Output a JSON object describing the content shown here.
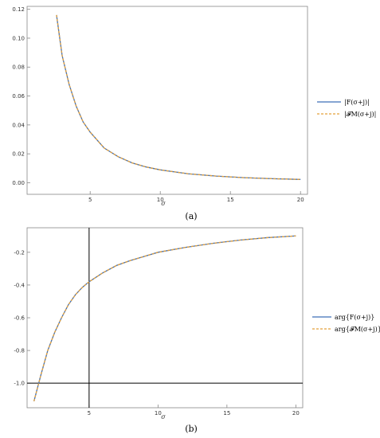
{
  "chart_data": [
    {
      "type": "line",
      "caption": "(a)",
      "xlabel": "σ",
      "xlim": [
        0.5,
        20.5
      ],
      "ylim": [
        -0.008,
        0.122
      ],
      "xticks": [
        5,
        10,
        15,
        20
      ],
      "yticks": [
        0.0,
        0.02,
        0.04,
        0.06,
        0.08,
        0.1,
        0.12
      ],
      "ytick_labels": [
        "0.00",
        "0.02",
        "0.04",
        "0.06",
        "0.08",
        "0.10",
        "0.12"
      ],
      "grid": false,
      "legend_position": "right",
      "series": [
        {
          "name": "|F(σ+j)|",
          "style": "solid",
          "color": "#3f6fb6",
          "x": [
            2.6,
            3,
            3.5,
            4,
            4.5,
            5,
            6,
            7,
            8,
            9,
            10,
            12,
            14,
            16,
            18,
            20
          ],
          "y": [
            0.116,
            0.088,
            0.068,
            0.053,
            0.042,
            0.035,
            0.024,
            0.018,
            0.0137,
            0.0109,
            0.0089,
            0.0062,
            0.0046,
            0.0035,
            0.0028,
            0.0023
          ]
        },
        {
          "name": "|𝓕M(σ+j)|",
          "style": "dashed",
          "color": "#e4a13b",
          "x": [
            2.6,
            3,
            3.5,
            4,
            4.5,
            5,
            6,
            7,
            8,
            9,
            10,
            12,
            14,
            16,
            18,
            20
          ],
          "y": [
            0.116,
            0.088,
            0.068,
            0.053,
            0.042,
            0.035,
            0.024,
            0.018,
            0.0137,
            0.0109,
            0.0089,
            0.0062,
            0.0046,
            0.0035,
            0.0028,
            0.0023
          ]
        }
      ]
    },
    {
      "type": "line",
      "caption": "(b)",
      "xlabel": "σ",
      "xlim": [
        0.5,
        20.5
      ],
      "ylim": [
        -1.15,
        -0.05
      ],
      "xticks": [
        5,
        10,
        15,
        20
      ],
      "yticks": [
        -1.0,
        -0.8,
        -0.6,
        -0.4,
        -0.2
      ],
      "ytick_labels": [
        "-1.0",
        "-0.8",
        "-0.6",
        "-0.4",
        "-0.2"
      ],
      "reference_lines": {
        "x": 5,
        "y": -1.0
      },
      "grid": false,
      "legend_position": "right",
      "series": [
        {
          "name": "arg{F(σ+j)}",
          "style": "solid",
          "color": "#3f6fb6",
          "x": [
            1,
            1.5,
            2,
            2.5,
            3,
            3.5,
            4,
            4.5,
            5,
            6,
            7,
            8,
            9,
            10,
            12,
            14,
            16,
            18,
            20
          ],
          "y": [
            -1.11,
            -0.95,
            -0.8,
            -0.69,
            -0.6,
            -0.52,
            -0.46,
            -0.415,
            -0.38,
            -0.325,
            -0.28,
            -0.25,
            -0.225,
            -0.2,
            -0.17,
            -0.145,
            -0.125,
            -0.11,
            -0.1
          ]
        },
        {
          "name": "arg{𝓕M(σ+j)}",
          "style": "dashed",
          "color": "#e4a13b",
          "x": [
            1,
            1.5,
            2,
            2.5,
            3,
            3.5,
            4,
            4.5,
            5,
            6,
            7,
            8,
            9,
            10,
            12,
            14,
            16,
            18,
            20
          ],
          "y": [
            -1.11,
            -0.95,
            -0.8,
            -0.69,
            -0.6,
            -0.52,
            -0.46,
            -0.415,
            -0.38,
            -0.325,
            -0.28,
            -0.25,
            -0.225,
            -0.2,
            -0.17,
            -0.145,
            -0.125,
            -0.11,
            -0.1
          ]
        }
      ]
    }
  ]
}
